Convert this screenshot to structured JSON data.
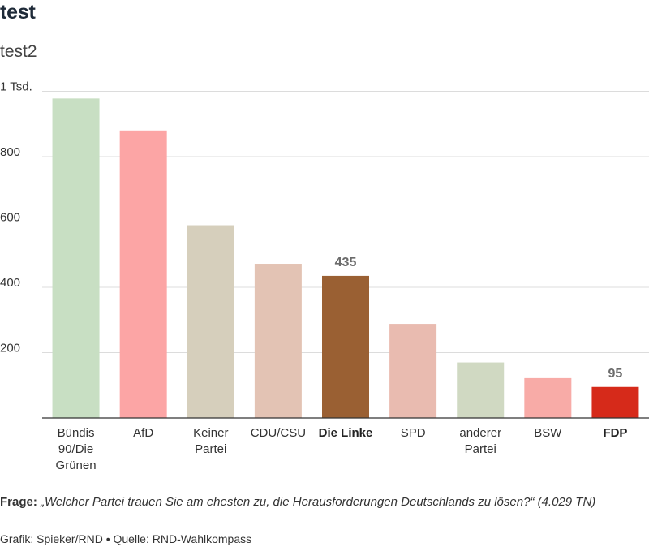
{
  "title": "test",
  "subtitle": "test2",
  "footer": {
    "question_label": "Frage:",
    "question_text": "„Welcher Partei trauen Sie am ehesten zu, die Herausforderungen Deutschlands zu lösen?“ (4.029 TN)",
    "credit": "Grafik: Spieker/RND • Quelle: RND-Wahlkompass"
  },
  "chart_data": {
    "type": "bar",
    "title": "test",
    "subtitle": "test2",
    "categories": [
      [
        "Bündis",
        "90/Die",
        "Grünen"
      ],
      [
        "AfD"
      ],
      [
        "Keiner",
        "Partei"
      ],
      [
        "CDU/CSU"
      ],
      [
        "Die Linke"
      ],
      [
        "SPD"
      ],
      [
        "anderer",
        "Partei"
      ],
      [
        "BSW"
      ],
      [
        "FDP"
      ]
    ],
    "values": [
      978,
      880,
      590,
      472,
      435,
      288,
      170,
      122,
      95
    ],
    "colors": [
      "#c8dfc3",
      "#fca5a5",
      "#d6cfbc",
      "#e3c3b4",
      "#9a6033",
      "#e9bbb0",
      "#d0d9c2",
      "#f8aba7",
      "#d62a1a"
    ],
    "highlighted": [
      false,
      false,
      false,
      false,
      true,
      false,
      false,
      false,
      true
    ],
    "data_labels": [
      "",
      "",
      "",
      "",
      "435",
      "",
      "",
      "",
      "95"
    ],
    "yticks": [
      200,
      400,
      600,
      800,
      1000
    ],
    "ytick_labels": [
      "200",
      "400",
      "600",
      "800",
      "1 Tsd."
    ],
    "ylim": [
      0,
      1000
    ],
    "grid": true,
    "xlabel": "",
    "ylabel": ""
  }
}
